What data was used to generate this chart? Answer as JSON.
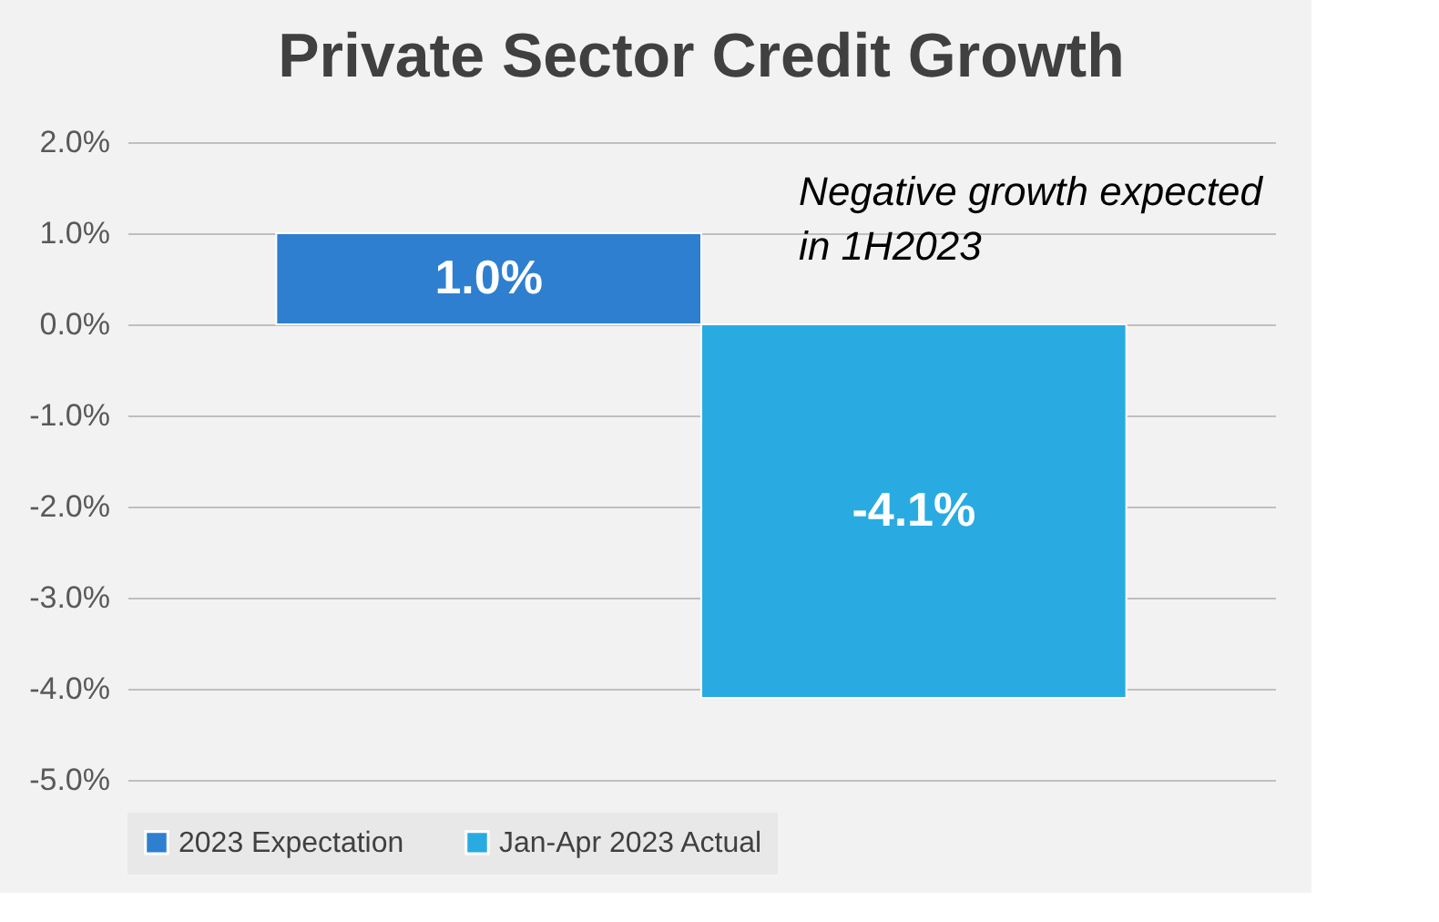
{
  "chart_data": {
    "type": "bar",
    "title": "Private Sector Credit Growth",
    "categories": [
      null
    ],
    "series": [
      {
        "name": "2023 Expectation",
        "color": "#2e7fd0",
        "values": [
          1.0
        ],
        "value_labels": [
          "1.0%"
        ]
      },
      {
        "name": "Jan-Apr 2023 Actual",
        "color": "#29abe2",
        "values": [
          -4.1
        ],
        "value_labels": [
          "-4.1%"
        ]
      }
    ],
    "ylim": [
      -5,
      2
    ],
    "yticks": [
      {
        "value": 2,
        "label": "2.0%"
      },
      {
        "value": 1,
        "label": "1.0%"
      },
      {
        "value": 0,
        "label": "0.0%"
      },
      {
        "value": -1,
        "label": "-1.0%"
      },
      {
        "value": -2,
        "label": "-2.0%"
      },
      {
        "value": -3,
        "label": "-3.0%"
      },
      {
        "value": -4,
        "label": "-4.0%"
      },
      {
        "value": -5,
        "label": "-5.0%"
      }
    ],
    "grid": "y",
    "legend": "bottom",
    "annotations": [
      "Negative growth expected in 1H2023"
    ]
  }
}
